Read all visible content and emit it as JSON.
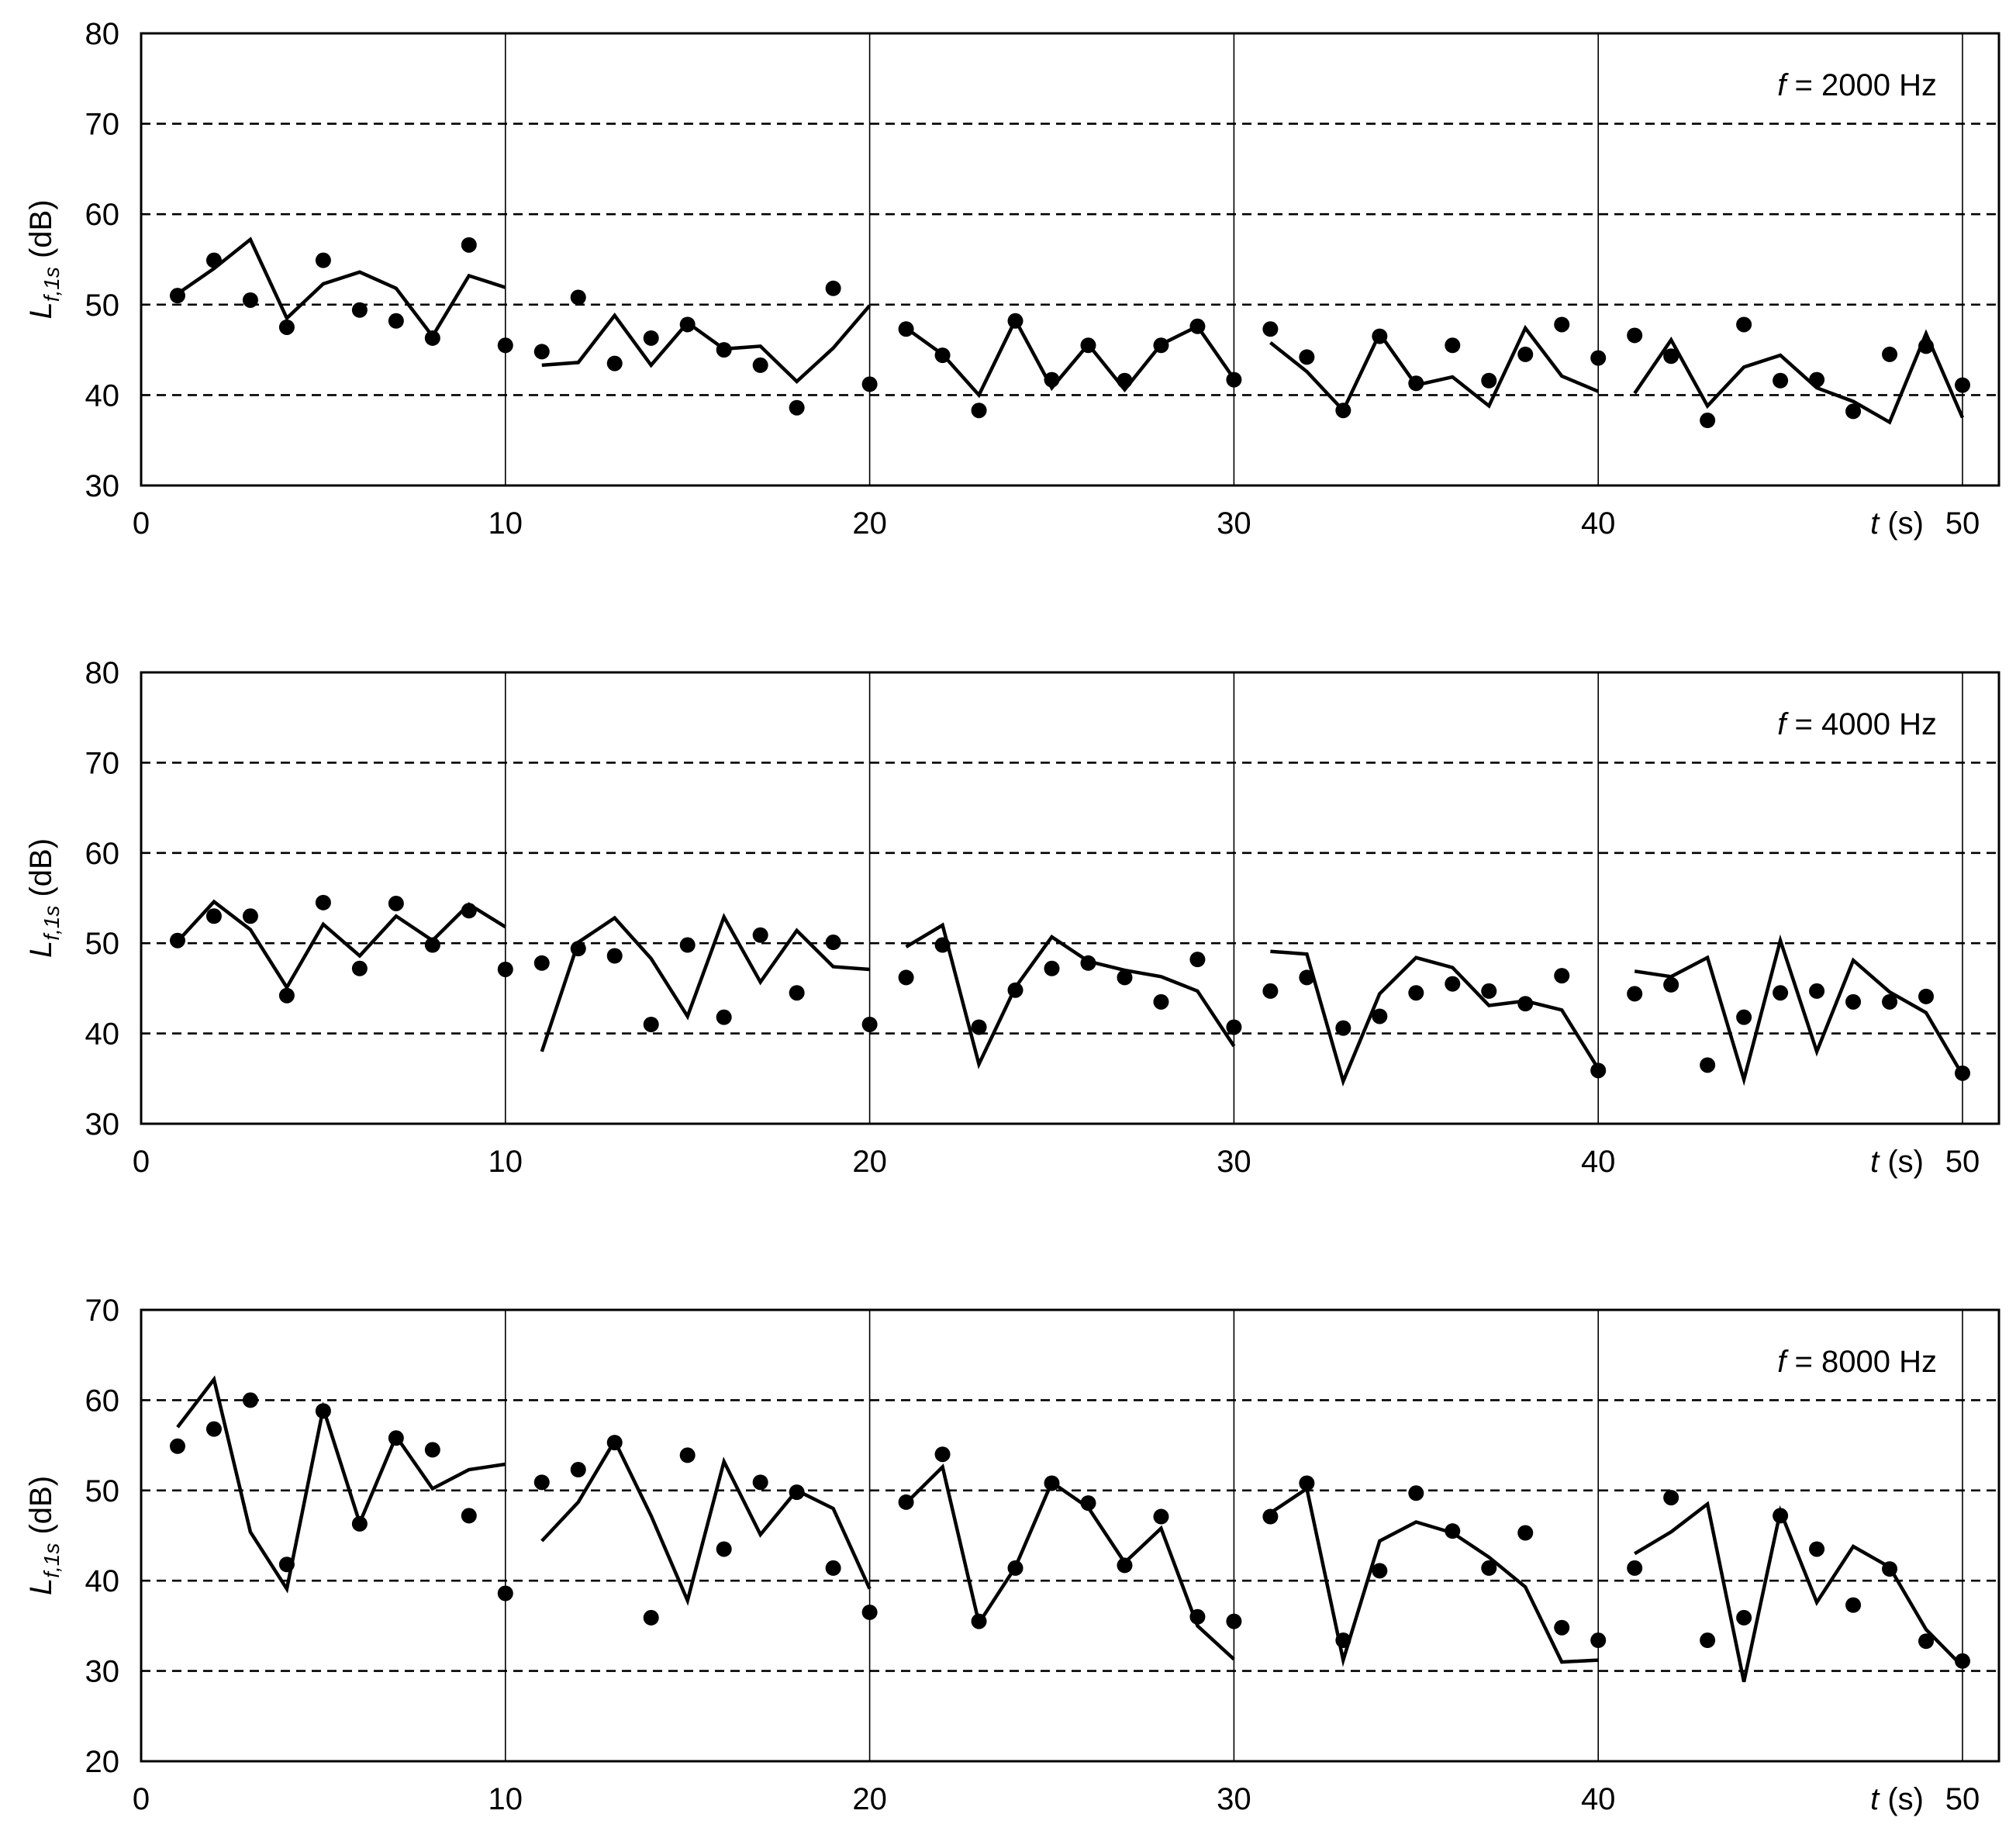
{
  "chart_data": [
    {
      "type": "line",
      "annotation": {
        "italic": "f",
        "text": " = 2000 Hz"
      },
      "ylabel": {
        "main": "L",
        "sub": "f,1s",
        "unit": " (dB)"
      },
      "xlabel": {
        "italic": "t",
        "unit": " (s)"
      },
      "ylim": [
        30,
        80
      ],
      "xlim": [
        0,
        51.5
      ],
      "yticks": [
        "30",
        "40",
        "50",
        "60",
        "70",
        "80"
      ],
      "xticks": [
        "0",
        "10",
        "20",
        "30",
        "40",
        "50"
      ],
      "dashed_grid": [
        40,
        50,
        60,
        70
      ],
      "separators": [
        10,
        20,
        30,
        40,
        50
      ],
      "series": [
        {
          "kind": "line",
          "segments": [
            {
              "x": [
                1,
                2,
                3,
                4,
                5,
                6,
                7,
                8,
                9,
                10
              ],
              "y": [
                51.2,
                54,
                57.2,
                48.5,
                52.3,
                53.6,
                51.8,
                46.5,
                53.2,
                51.9
              ]
            },
            {
              "x": [
                11,
                12,
                13,
                14,
                15,
                16,
                17,
                18,
                19,
                20
              ],
              "y": [
                43.3,
                43.6,
                48.8,
                43.3,
                48,
                45.1,
                45.4,
                41.5,
                45.2,
                49.9
              ]
            },
            {
              "x": [
                21,
                22,
                23,
                24,
                25,
                26,
                27,
                28,
                29,
                30
              ],
              "y": [
                47.4,
                44.5,
                40,
                48.3,
                40.8,
                45.6,
                40.6,
                45.6,
                47.6,
                41.8
              ]
            },
            {
              "x": [
                31,
                32,
                33,
                34,
                35,
                36,
                37,
                38,
                39,
                40
              ],
              "y": [
                45.8,
                42.6,
                38.3,
                46.8,
                41.1,
                42,
                38.8,
                47.4,
                42.1,
                40.4
              ]
            },
            {
              "x": [
                41,
                42,
                43,
                44,
                45,
                46,
                47,
                48,
                49,
                50
              ],
              "y": [
                40.2,
                46.1,
                38.8,
                43.1,
                44.4,
                40.8,
                39.3,
                37,
                46.8,
                37.5
              ]
            }
          ]
        },
        {
          "kind": "scatter",
          "x": [
            1,
            2,
            3,
            4,
            5,
            6,
            7,
            8,
            9,
            10,
            11,
            12,
            13,
            14,
            15,
            16,
            17,
            18,
            19,
            20,
            21,
            22,
            23,
            24,
            25,
            26,
            27,
            28,
            29,
            30,
            31,
            32,
            33,
            34,
            35,
            36,
            37,
            38,
            39,
            40,
            41,
            42,
            43,
            44,
            45,
            46,
            47,
            48,
            49,
            50
          ],
          "y": [
            51,
            54.9,
            50.5,
            47.5,
            54.9,
            49.4,
            48.2,
            46.3,
            56.6,
            45.5,
            44.8,
            50.8,
            43.5,
            46.3,
            47.8,
            45,
            43.3,
            38.6,
            51.8,
            41.2,
            47.3,
            44.4,
            38.3,
            48.2,
            41.7,
            45.5,
            41.6,
            45.5,
            47.6,
            41.7,
            47.3,
            44.2,
            38.3,
            46.5,
            41.3,
            45.5,
            41.6,
            44.5,
            47.8,
            44.1,
            46.6,
            44.3,
            37.2,
            47.8,
            41.6,
            41.7,
            38.2,
            44.5,
            45.4,
            41.1
          ]
        }
      ]
    },
    {
      "type": "line",
      "annotation": {
        "italic": "f",
        "text": " = 4000 Hz"
      },
      "ylabel": {
        "main": "L",
        "sub": "f,1s",
        "unit": " (dB)"
      },
      "xlabel": {
        "italic": "t",
        "unit": " (s)"
      },
      "ylim": [
        30,
        80
      ],
      "xlim": [
        0,
        51.5
      ],
      "yticks": [
        "30",
        "40",
        "50",
        "60",
        "70",
        "80"
      ],
      "xticks": [
        "0",
        "10",
        "20",
        "30",
        "40",
        "50"
      ],
      "dashed_grid": [
        40,
        50,
        60,
        70
      ],
      "separators": [
        10,
        20,
        30,
        40,
        50
      ],
      "series": [
        {
          "kind": "line",
          "segments": [
            {
              "x": [
                1,
                2,
                3,
                4,
                5,
                6,
                7,
                8,
                9,
                10
              ],
              "y": [
                50.2,
                54.6,
                51.5,
                45.1,
                52.1,
                48.6,
                53,
                50.3,
                54.3,
                51.8
              ]
            },
            {
              "x": [
                11,
                12,
                13,
                14,
                15,
                16,
                17,
                18,
                19,
                20
              ],
              "y": [
                38,
                50.1,
                52.8,
                48.3,
                41.9,
                52.9,
                45.7,
                51.4,
                47.4,
                47.1
              ]
            },
            {
              "x": [
                21,
                22,
                23,
                24,
                25,
                26,
                27,
                28,
                29,
                30
              ],
              "y": [
                49.6,
                52,
                36.6,
                45.1,
                50.7,
                48,
                47,
                46.3,
                44.7,
                38.6
              ]
            },
            {
              "x": [
                31,
                32,
                33,
                34,
                35,
                36,
                37,
                38,
                39,
                40
              ],
              "y": [
                49.1,
                48.8,
                34.7,
                44.4,
                48.4,
                47.3,
                43.1,
                43.6,
                42.6,
                36.1
              ]
            },
            {
              "x": [
                41,
                42,
                43,
                44,
                45,
                46,
                47,
                48,
                49,
                50
              ],
              "y": [
                46.9,
                46.3,
                48.4,
                34.9,
                50.3,
                38,
                48.1,
                44.6,
                42.3,
                35.4
              ]
            }
          ]
        },
        {
          "kind": "scatter",
          "x": [
            1,
            2,
            3,
            4,
            5,
            6,
            7,
            8,
            9,
            10,
            11,
            12,
            13,
            14,
            15,
            16,
            17,
            18,
            19,
            20,
            21,
            22,
            23,
            24,
            25,
            26,
            27,
            28,
            29,
            30,
            31,
            32,
            33,
            34,
            35,
            36,
            37,
            38,
            39,
            40,
            41,
            42,
            43,
            44,
            45,
            46,
            47,
            48,
            49,
            50
          ],
          "y": [
            50.3,
            53,
            53,
            44.2,
            54.5,
            47.2,
            54.4,
            49.8,
            53.6,
            47.1,
            47.8,
            49.4,
            48.6,
            41,
            49.8,
            41.8,
            50.9,
            44.5,
            50.1,
            41,
            46.2,
            49.8,
            40.7,
            44.8,
            47.2,
            47.8,
            46.2,
            43.5,
            48.2,
            40.7,
            44.7,
            46.2,
            40.6,
            41.9,
            44.5,
            45.5,
            44.7,
            43.3,
            46.4,
            35.9,
            44.4,
            45.4,
            36.5,
            41.8,
            44.5,
            44.7,
            43.5,
            43.5,
            44.1,
            35.6
          ]
        }
      ]
    },
    {
      "type": "line",
      "annotation": {
        "italic": "f",
        "text": " = 8000 Hz"
      },
      "ylabel": {
        "main": "L",
        "sub": "f,1s",
        "unit": " (dB)"
      },
      "xlabel": {
        "italic": "t",
        "unit": " (s)"
      },
      "ylim": [
        20,
        70
      ],
      "xlim": [
        0,
        51.5
      ],
      "yticks": [
        "20",
        "30",
        "40",
        "50",
        "60",
        "70"
      ],
      "xticks": [
        "0",
        "10",
        "20",
        "30",
        "40",
        "50"
      ],
      "dashed_grid": [
        30,
        40,
        50,
        60
      ],
      "separators": [
        10,
        20,
        30,
        40,
        50
      ],
      "series": [
        {
          "kind": "line",
          "segments": [
            {
              "x": [
                1,
                2,
                3,
                4,
                5,
                6,
                7,
                8,
                9,
                10
              ],
              "y": [
                57,
                62.3,
                45.4,
                39.1,
                59.1,
                46.4,
                56,
                50.2,
                52.3,
                52.9
              ]
            },
            {
              "x": [
                11,
                12,
                13,
                14,
                15,
                16,
                17,
                18,
                19,
                20
              ],
              "y": [
                44.4,
                48.7,
                55.5,
                47.2,
                37.8,
                53.2,
                45.1,
                50,
                48,
                39.1
              ]
            },
            {
              "x": [
                21,
                22,
                23,
                24,
                25,
                26,
                27,
                28,
                29,
                30
              ],
              "y": [
                48.6,
                52.6,
                35.3,
                41.5,
                50.9,
                48.1,
                42,
                45.8,
                35,
                31.3
              ]
            },
            {
              "x": [
                31,
                32,
                33,
                34,
                35,
                36,
                37,
                38,
                39,
                40
              ],
              "y": [
                47.5,
                50.2,
                31.2,
                44.4,
                46.5,
                45.3,
                42.6,
                39.3,
                31,
                31.2
              ]
            },
            {
              "x": [
                41,
                42,
                43,
                44,
                45,
                46,
                47,
                48,
                49,
                50
              ],
              "y": [
                43,
                45.4,
                48.5,
                28.8,
                47.7,
                37.6,
                43.8,
                41.5,
                34.6,
                30.5
              ]
            }
          ]
        },
        {
          "kind": "scatter",
          "x": [
            1,
            2,
            3,
            4,
            5,
            6,
            7,
            8,
            9,
            10,
            11,
            12,
            13,
            14,
            15,
            16,
            17,
            18,
            19,
            20,
            21,
            22,
            23,
            24,
            25,
            26,
            27,
            28,
            29,
            30,
            31,
            32,
            33,
            34,
            35,
            36,
            37,
            38,
            39,
            40,
            41,
            42,
            43,
            44,
            45,
            46,
            47,
            48,
            49,
            50
          ],
          "y": [
            54.9,
            56.8,
            60,
            41.8,
            58.8,
            46.3,
            55.8,
            54.5,
            47.2,
            38.6,
            50.9,
            52.3,
            55.3,
            35.9,
            53.9,
            43.5,
            50.9,
            49.8,
            41.4,
            36.5,
            48.7,
            54,
            35.5,
            41.4,
            50.8,
            48.6,
            41.7,
            47.1,
            36,
            35.5,
            47.1,
            50.8,
            33.4,
            41.1,
            49.7,
            45.5,
            41.4,
            45.3,
            34.8,
            33.4,
            41.4,
            49.2,
            33.4,
            35.9,
            47.2,
            43.5,
            37.3,
            41.3,
            33.3,
            31.1
          ]
        }
      ]
    }
  ]
}
